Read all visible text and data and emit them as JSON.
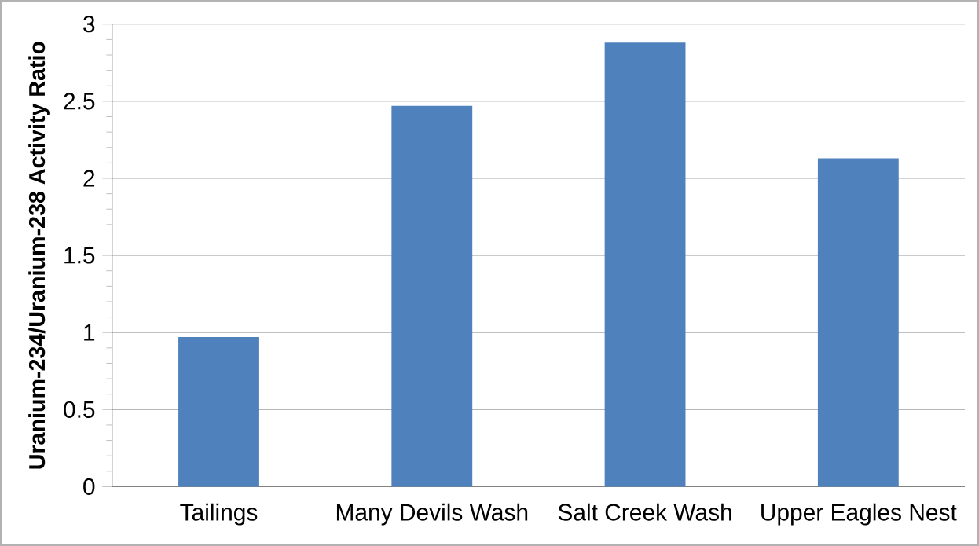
{
  "chart_data": {
    "type": "bar",
    "ylabel": "Uranium-234/Uranium-238 Activity Ratio",
    "categories": [
      "Tailings",
      "Many Devils Wash",
      "Salt Creek Wash",
      "Upper Eagles Nest"
    ],
    "values": [
      0.97,
      2.47,
      2.88,
      2.13
    ],
    "color": "#4f81bd",
    "ylim": [
      0,
      3
    ],
    "yticks": [
      0,
      0.5,
      1,
      1.5,
      2,
      2.5,
      3
    ],
    "grid": "y"
  }
}
